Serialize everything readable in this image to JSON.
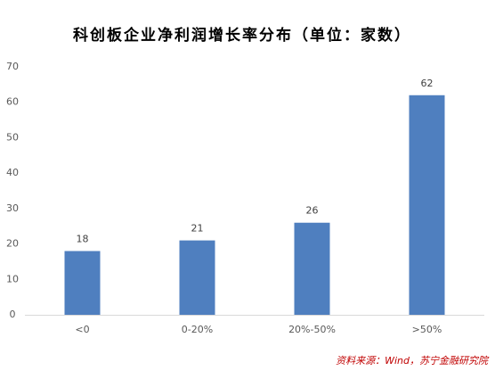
{
  "chart_data": {
    "type": "bar",
    "title": "科创板企业净利润增长率分布（单位：家数）",
    "categories": [
      "<0",
      "0-20%",
      "20%-50%",
      ">50%"
    ],
    "values": [
      18,
      21,
      26,
      62
    ],
    "color": "#4f7fbf",
    "ylim": [
      0,
      70
    ],
    "yticks": [
      0,
      10,
      20,
      30,
      40,
      50,
      60,
      70
    ],
    "grid": false,
    "source": "资料来源：Wind，苏宁金融研究院"
  }
}
